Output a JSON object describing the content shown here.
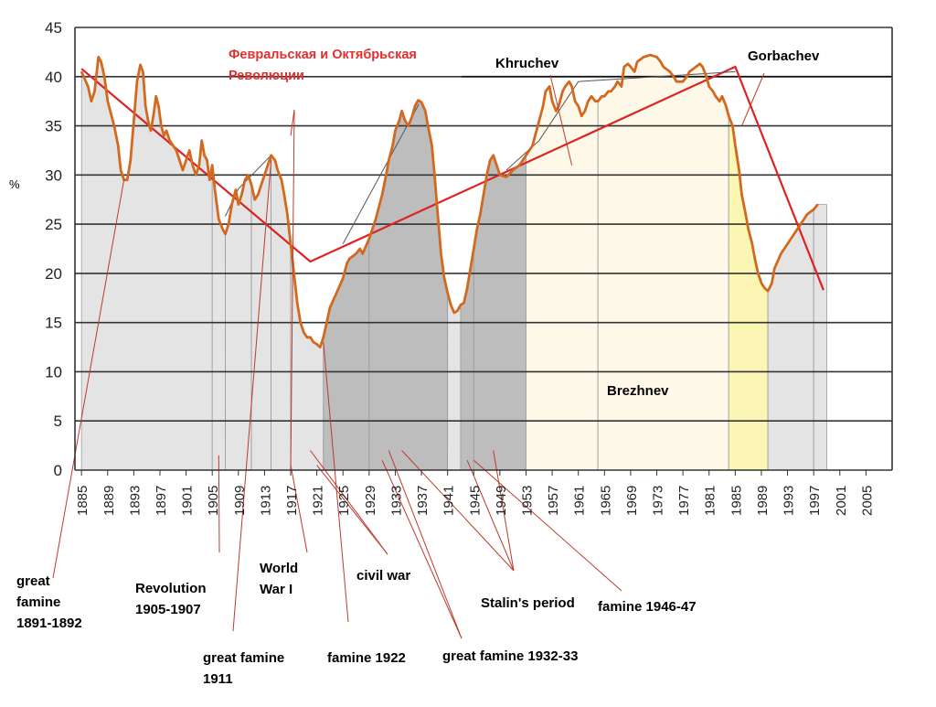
{
  "chart_data": {
    "type": "line",
    "title": "",
    "xlabel": "",
    "ylabel": "%",
    "xlim": [
      1884,
      2009
    ],
    "ylim": [
      0,
      45
    ],
    "y_ticks": [
      0,
      5,
      10,
      15,
      20,
      25,
      30,
      35,
      40,
      45
    ],
    "x_ticks": [
      1885,
      1889,
      1893,
      1897,
      1901,
      1905,
      1909,
      1913,
      1917,
      1921,
      1925,
      1929,
      1933,
      1937,
      1941,
      1945,
      1949,
      1953,
      1957,
      1961,
      1965,
      1969,
      1973,
      1977,
      1981,
      1985,
      1989,
      1993,
      1997,
      2001,
      2005
    ],
    "grid": true,
    "legend": "none",
    "colors": {
      "series": "#d2691e",
      "trend": "#dd2222",
      "light_band": "#e4e4e4",
      "dark_band": "#bdbdbd",
      "brezhnev_band": "#fdf8e8",
      "gorbachev_band": "#fcf6b4",
      "annotation_line": "#c0392b",
      "label_red": "#e03030"
    },
    "series": [
      {
        "values": [
          [
            1885,
            40.5
          ],
          [
            1886,
            39.0
          ],
          [
            1886.5,
            37.5
          ],
          [
            1887,
            38.5
          ],
          [
            1887.6,
            42.0
          ],
          [
            1888,
            41.5
          ],
          [
            1888.5,
            40.0
          ],
          [
            1889,
            37.5
          ],
          [
            1890,
            35.0
          ],
          [
            1890.6,
            33.0
          ],
          [
            1891,
            30.5
          ],
          [
            1891.5,
            29.5
          ],
          [
            1892,
            29.5
          ],
          [
            1892.5,
            31.5
          ],
          [
            1893,
            35.5
          ],
          [
            1893.5,
            39.5
          ],
          [
            1894,
            41.2
          ],
          [
            1894.4,
            40.5
          ],
          [
            1894.8,
            37.0
          ],
          [
            1895.2,
            35.5
          ],
          [
            1895.6,
            34.5
          ],
          [
            1896,
            36.0
          ],
          [
            1896.4,
            38.0
          ],
          [
            1896.8,
            37.0
          ],
          [
            1897.2,
            35.0
          ],
          [
            1897.6,
            34.0
          ],
          [
            1898,
            34.5
          ],
          [
            1898.5,
            33.5
          ],
          [
            1899,
            33.0
          ],
          [
            1899.5,
            32.5
          ],
          [
            1900,
            31.5
          ],
          [
            1900.5,
            30.5
          ],
          [
            1901,
            31.5
          ],
          [
            1901.5,
            32.5
          ],
          [
            1902,
            31.0
          ],
          [
            1902.5,
            30.0
          ],
          [
            1903,
            31.0
          ],
          [
            1903.4,
            33.5
          ],
          [
            1903.8,
            32.0
          ],
          [
            1904.2,
            31.5
          ],
          [
            1904.6,
            29.5
          ],
          [
            1905,
            31.0
          ],
          [
            1905.4,
            28.5
          ],
          [
            1906,
            25.5
          ],
          [
            1906.6,
            24.5
          ],
          [
            1907,
            24.0
          ],
          [
            1907.5,
            25.0
          ],
          [
            1908,
            27.0
          ],
          [
            1908.6,
            28.5
          ],
          [
            1909,
            27.0
          ],
          [
            1909.5,
            28.0
          ],
          [
            1910,
            29.5
          ],
          [
            1910.5,
            30.0
          ],
          [
            1911,
            29.0
          ],
          [
            1911.5,
            27.5
          ],
          [
            1912,
            28.0
          ],
          [
            1912.5,
            29.0
          ],
          [
            1913,
            30.0
          ],
          [
            1913.5,
            31.0
          ],
          [
            1914,
            32.0
          ],
          [
            1914.6,
            31.5
          ],
          [
            1915,
            30.5
          ],
          [
            1915.6,
            29.5
          ],
          [
            1916,
            28.0
          ],
          [
            1916.5,
            26.0
          ],
          [
            1917,
            23.0
          ],
          [
            1917.5,
            20.0
          ],
          [
            1918,
            17.0
          ],
          [
            1918.5,
            15.0
          ],
          [
            1919,
            14.0
          ],
          [
            1919.5,
            13.5
          ],
          [
            1920,
            13.5
          ],
          [
            1920.5,
            13.0
          ],
          [
            1921,
            12.8
          ],
          [
            1921.5,
            12.5
          ],
          [
            1922,
            13.5
          ],
          [
            1922.5,
            15.0
          ],
          [
            1923,
            16.5
          ],
          [
            1924,
            18.0
          ],
          [
            1925,
            19.5
          ],
          [
            1925.6,
            21.0
          ],
          [
            1926,
            21.5
          ],
          [
            1927,
            22.0
          ],
          [
            1927.6,
            22.5
          ],
          [
            1928,
            22.0
          ],
          [
            1929,
            23.5
          ],
          [
            1930,
            25.5
          ],
          [
            1931,
            28.0
          ],
          [
            1931.6,
            30.0
          ],
          [
            1932,
            31.5
          ],
          [
            1932.6,
            33.0
          ],
          [
            1933,
            34.5
          ],
          [
            1933.6,
            35.5
          ],
          [
            1934,
            36.5
          ],
          [
            1934.5,
            35.5
          ],
          [
            1935,
            35.0
          ],
          [
            1935.6,
            36.0
          ],
          [
            1936,
            37.0
          ],
          [
            1936.5,
            37.6
          ],
          [
            1937,
            37.4
          ],
          [
            1937.6,
            36.5
          ],
          [
            1938,
            35.0
          ],
          [
            1938.6,
            33.0
          ],
          [
            1939,
            30.0
          ],
          [
            1939.5,
            26.0
          ],
          [
            1940,
            22.0
          ],
          [
            1940.5,
            19.5
          ],
          [
            1941,
            18.0
          ],
          [
            1941.5,
            16.8
          ],
          [
            1942,
            16.0
          ],
          [
            1942.5,
            16.2
          ],
          [
            1943,
            16.8
          ],
          [
            1943.5,
            17.0
          ],
          [
            1944,
            18.5
          ],
          [
            1944.5,
            20.5
          ],
          [
            1945,
            22.5
          ],
          [
            1945.5,
            24.5
          ],
          [
            1946,
            26.0
          ],
          [
            1946.5,
            28.0
          ],
          [
            1947,
            30.0
          ],
          [
            1947.5,
            31.5
          ],
          [
            1948,
            32.0
          ],
          [
            1948.5,
            31.0
          ],
          [
            1949,
            30.0
          ],
          [
            1950,
            29.8
          ],
          [
            1951,
            30.5
          ],
          [
            1952,
            31.0
          ],
          [
            1953,
            32.0
          ],
          [
            1954,
            33.0
          ],
          [
            1954.6,
            34.5
          ],
          [
            1955,
            35.5
          ],
          [
            1955.6,
            37.0
          ],
          [
            1956,
            38.5
          ],
          [
            1956.6,
            39.0
          ],
          [
            1957,
            37.5
          ],
          [
            1957.6,
            36.5
          ],
          [
            1958,
            37.0
          ],
          [
            1958.6,
            38.5
          ],
          [
            1959,
            39.0
          ],
          [
            1959.6,
            39.5
          ],
          [
            1960,
            39.0
          ],
          [
            1960.5,
            37.5
          ],
          [
            1961,
            37.0
          ],
          [
            1961.5,
            36.0
          ],
          [
            1962,
            36.5
          ],
          [
            1962.5,
            37.5
          ],
          [
            1963,
            38.0
          ],
          [
            1963.6,
            37.5
          ],
          [
            1964,
            37.5
          ],
          [
            1964.6,
            38.0
          ],
          [
            1965,
            38.0
          ],
          [
            1965.6,
            38.5
          ],
          [
            1966,
            38.5
          ],
          [
            1966.6,
            39.0
          ],
          [
            1967,
            39.5
          ],
          [
            1967.6,
            39.0
          ],
          [
            1968,
            41.0
          ],
          [
            1968.6,
            41.3
          ],
          [
            1969,
            41.0
          ],
          [
            1969.6,
            40.5
          ],
          [
            1970,
            41.5
          ],
          [
            1971,
            42.0
          ],
          [
            1972,
            42.2
          ],
          [
            1973,
            42.0
          ],
          [
            1973.6,
            41.5
          ],
          [
            1974,
            41.0
          ],
          [
            1975,
            40.5
          ],
          [
            1975.6,
            40.0
          ],
          [
            1976,
            39.5
          ],
          [
            1977,
            39.5
          ],
          [
            1977.6,
            40.0
          ],
          [
            1978,
            40.5
          ],
          [
            1979,
            41.0
          ],
          [
            1979.6,
            41.3
          ],
          [
            1980,
            41.0
          ],
          [
            1980.6,
            40.0
          ],
          [
            1981,
            39.0
          ],
          [
            1981.6,
            38.5
          ],
          [
            1982,
            38.0
          ],
          [
            1982.6,
            37.5
          ],
          [
            1983,
            38.0
          ],
          [
            1983.6,
            37.0
          ],
          [
            1984,
            36.0
          ],
          [
            1984.6,
            35.0
          ],
          [
            1985,
            33.0
          ],
          [
            1985.6,
            30.5
          ],
          [
            1986,
            28.0
          ],
          [
            1986.6,
            26.0
          ],
          [
            1987,
            24.5
          ],
          [
            1987.6,
            23.0
          ],
          [
            1988,
            21.5
          ],
          [
            1988.5,
            20.0
          ],
          [
            1989,
            19.0
          ],
          [
            1989.5,
            18.5
          ],
          [
            1990,
            18.2
          ],
          [
            1990.6,
            19.0
          ],
          [
            1991,
            20.5
          ],
          [
            1992,
            22.0
          ],
          [
            1993,
            23.0
          ],
          [
            1994,
            24.0
          ],
          [
            1995,
            25.0
          ],
          [
            1996,
            26.0
          ],
          [
            1997,
            26.5
          ],
          [
            1997.6,
            27.0
          ]
        ]
      }
    ],
    "trend_lines": [
      [
        [
          1885,
          40.8
        ],
        [
          1920,
          21.2
        ],
        [
          1985,
          41.0
        ],
        [
          1998.5,
          18.3
        ]
      ],
      [
        [
          1907,
          25.8
        ],
        [
          1909,
          28.6
        ],
        [
          1914,
          32.0
        ]
      ],
      [
        [
          1925,
          23.0
        ],
        [
          1936.6,
          37.2
        ]
      ],
      [
        [
          1950,
          30.5
        ],
        [
          1955,
          33.5
        ],
        [
          1961,
          39.5
        ],
        [
          1985,
          40.5
        ]
      ]
    ],
    "periods": [
      {
        "start": 1885,
        "end": 1905,
        "tone": "light_band"
      },
      {
        "start": 1905,
        "end": 1907,
        "tone": "light_band"
      },
      {
        "start": 1907,
        "end": 1911,
        "tone": "light_band"
      },
      {
        "start": 1911,
        "end": 1914,
        "tone": "light_band"
      },
      {
        "start": 1914,
        "end": 1917,
        "tone": "light_band"
      },
      {
        "start": 1917,
        "end": 1922,
        "tone": "light_band"
      },
      {
        "start": 1922,
        "end": 1929,
        "tone": "dark_band"
      },
      {
        "start": 1929,
        "end": 1941,
        "tone": "dark_band"
      },
      {
        "start": 1941,
        "end": 1943,
        "tone": "light_band"
      },
      {
        "start": 1943,
        "end": 1945,
        "tone": "dark_band"
      },
      {
        "start": 1945,
        "end": 1953,
        "tone": "dark_band"
      },
      {
        "start": 1953,
        "end": 1964,
        "tone": "brezhnev_band"
      },
      {
        "start": 1964,
        "end": 1984,
        "tone": "brezhnev_band"
      },
      {
        "start": 1984,
        "end": 1990,
        "tone": "gorbachev_band"
      },
      {
        "start": 1990,
        "end": 1997,
        "tone": "light_band"
      },
      {
        "start": 1997,
        "end": 1999,
        "tone": "light_band"
      }
    ],
    "annotations": [
      {
        "text_lines": [
          "great",
          "famine",
          "1891-1892"
        ],
        "x": 1891.5,
        "y": 29.5,
        "side": "below"
      },
      {
        "text_lines": [
          "Revolution",
          "1905-1907"
        ],
        "x": 1906,
        "y": 2.0,
        "side": "below"
      },
      {
        "text_lines": [
          "great famine",
          "1911"
        ],
        "x": 1914,
        "y": 31.5,
        "side": "below"
      },
      {
        "text_lines": [
          "World",
          "War I"
        ],
        "x": 1916.5,
        "y": 1.0,
        "side": "below"
      },
      {
        "text_lines": [
          "civil war"
        ],
        "x": 1920,
        "y": 2.0,
        "side": "below"
      },
      {
        "text_lines": [
          "famine 1922"
        ],
        "x": 1922,
        "y": 13.5,
        "side": "below"
      },
      {
        "text_lines": [
          "great famine 1932-33"
        ],
        "x": 1932,
        "y": 2.0,
        "side": "below"
      },
      {
        "text_lines": [
          "Stalin's period"
        ],
        "x": 1934,
        "y": 2.0,
        "side": "below"
      },
      {
        "text_lines": [
          "famine 1946-47"
        ],
        "x": 1945,
        "y": 2.0,
        "side": "below"
      },
      {
        "text_lines": [
          "Февральская и Октябрьская",
          "Революции"
        ],
        "x": 1917,
        "y": 36.0,
        "side": "above",
        "color": "label_red"
      },
      {
        "text_lines": [
          "Khruchev"
        ],
        "x": 1960,
        "y": 31.0,
        "side": "above"
      },
      {
        "text_lines": [
          "Gorbachev"
        ],
        "x": 1987,
        "y": 36.5,
        "side": "above"
      },
      {
        "text_lines": [
          "Brezhnev"
        ],
        "x": 1968,
        "y": 8.0,
        "side": "inside"
      }
    ],
    "labels": {
      "great_famine_1891": "great\nfamine\n1891-1892",
      "revolution_1905": "Revolution\n1905-1907",
      "great_famine_1911": "great famine\n1911",
      "world_war_1": "World\nWar I",
      "civil_war": "civil war",
      "famine_1922": "famine 1922",
      "great_famine_1932": "great famine 1932-33",
      "stalin": "Stalin's period",
      "famine_1946": "famine 1946-47",
      "revolutions_ru": "Февральская и Октябрьская\nРеволюции",
      "khruchev": "Khruchev",
      "gorbachev": "Gorbachev",
      "brezhnev": "Brezhnev"
    }
  }
}
